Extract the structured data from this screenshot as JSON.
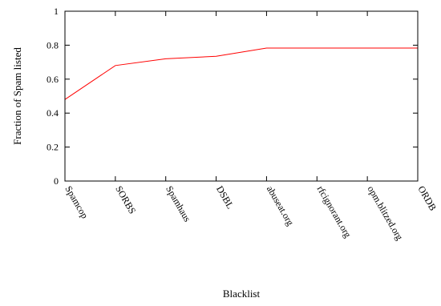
{
  "chart_data": {
    "type": "line",
    "title": "",
    "xlabel": "Blacklist",
    "ylabel": "Fraction of Spam listed",
    "categories": [
      "Spamcop",
      "SORBS",
      "Spamhaus",
      "DSBL",
      "abuseat.org",
      "rfcignorant.org",
      "opm.blitzed.org",
      "ORDB"
    ],
    "series": [
      {
        "values": [
          0.48,
          0.68,
          0.72,
          0.735,
          0.783,
          0.783,
          0.783,
          0.783
        ],
        "color": "#ff0000"
      }
    ],
    "ylim": [
      0,
      1
    ],
    "yticks": [
      0,
      0.2,
      0.4,
      0.6,
      0.8,
      1
    ],
    "ytick_labels": [
      "0",
      "0.2",
      "0.4",
      "0.6",
      "0.8",
      "1"
    ],
    "grid": false,
    "legend": "none"
  }
}
